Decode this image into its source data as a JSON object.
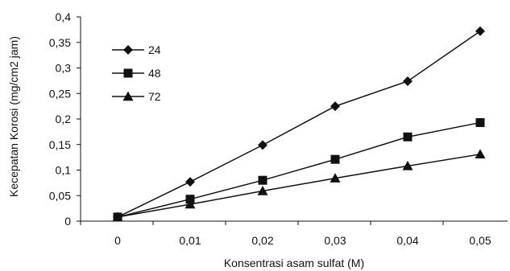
{
  "chart_data": {
    "type": "line",
    "title": "",
    "xlabel": "Konsentrasi asam sulfat (M)",
    "ylabel": "Kecepatan Korosi (mg/cm2 jam)",
    "categories": [
      "0",
      "0,01",
      "0,02",
      "0,03",
      "0,04",
      "0,05"
    ],
    "x": [
      0,
      0.01,
      0.02,
      0.03,
      0.04,
      0.05
    ],
    "ylim": [
      0,
      0.4
    ],
    "yticks": [
      0,
      0.05,
      0.1,
      0.15,
      0.2,
      0.25,
      0.3,
      0.35,
      0.4
    ],
    "ytick_labels": [
      "0",
      "0,05",
      "0,1",
      "0,15",
      "0,2",
      "0,25",
      "0,3",
      "0,35",
      "0,4"
    ],
    "grid": false,
    "legend_position": "top-left",
    "series": [
      {
        "name": "24",
        "marker": "diamond",
        "values": [
          0.008,
          0.077,
          0.149,
          0.225,
          0.274,
          0.372
        ]
      },
      {
        "name": "48",
        "marker": "square",
        "values": [
          0.008,
          0.043,
          0.08,
          0.121,
          0.165,
          0.193
        ]
      },
      {
        "name": "72",
        "marker": "triangle",
        "values": [
          0.008,
          0.033,
          0.059,
          0.084,
          0.108,
          0.131
        ]
      }
    ],
    "line_color": "#111111"
  }
}
